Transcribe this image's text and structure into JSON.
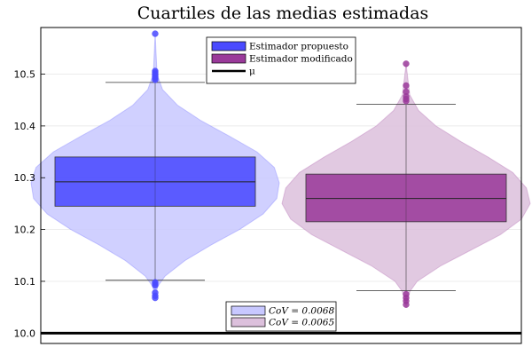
{
  "chart_data": {
    "type": "box",
    "title": "Cuartiles de las medias estimadas",
    "xlabel": "",
    "ylabel": "",
    "ylim": [
      9.98,
      10.59
    ],
    "yticks": [
      10.0,
      10.1,
      10.2,
      10.3,
      10.4,
      10.5
    ],
    "ytick_labels": [
      "10.0",
      "10.1",
      "10.2",
      "10.3",
      "10.4",
      "10.5"
    ],
    "grid": true,
    "legend_position": "top-center",
    "series": [
      {
        "name": "Estimador propuesto",
        "color": "#4a4aff",
        "violin_color": "#c8c8ff",
        "q1": 10.245,
        "median": 10.292,
        "q3": 10.34,
        "whisker_low": 10.102,
        "whisker_high": 10.484,
        "outliers": [
          10.578,
          10.506,
          10.503,
          10.5,
          10.498,
          10.495,
          10.492,
          10.489,
          10.098,
          10.095,
          10.092,
          10.078,
          10.072,
          10.068
        ],
        "violin": [
          [
            10.065,
            0.0
          ],
          [
            10.09,
            0.02
          ],
          [
            10.11,
            0.08
          ],
          [
            10.14,
            0.24
          ],
          [
            10.17,
            0.45
          ],
          [
            10.2,
            0.68
          ],
          [
            10.23,
            0.87
          ],
          [
            10.26,
            0.98
          ],
          [
            10.29,
            1.0
          ],
          [
            10.32,
            0.96
          ],
          [
            10.35,
            0.82
          ],
          [
            10.38,
            0.6
          ],
          [
            10.41,
            0.37
          ],
          [
            10.44,
            0.18
          ],
          [
            10.47,
            0.06
          ],
          [
            10.5,
            0.015
          ],
          [
            10.58,
            0.0
          ]
        ]
      },
      {
        "name": "Estimador modificado",
        "color": "#9a3a9a",
        "violin_color": "#dcc0dc",
        "q1": 10.215,
        "median": 10.26,
        "q3": 10.307,
        "whisker_low": 10.082,
        "whisker_high": 10.442,
        "outliers": [
          10.52,
          10.478,
          10.466,
          10.457,
          10.452,
          10.448,
          10.075,
          10.068,
          10.062,
          10.055
        ],
        "violin": [
          [
            10.05,
            0.0
          ],
          [
            10.08,
            0.03
          ],
          [
            10.1,
            0.09
          ],
          [
            10.13,
            0.28
          ],
          [
            10.16,
            0.52
          ],
          [
            10.19,
            0.76
          ],
          [
            10.22,
            0.93
          ],
          [
            10.25,
            1.0
          ],
          [
            10.28,
            0.97
          ],
          [
            10.31,
            0.86
          ],
          [
            10.34,
            0.66
          ],
          [
            10.37,
            0.44
          ],
          [
            10.4,
            0.24
          ],
          [
            10.43,
            0.1
          ],
          [
            10.46,
            0.03
          ],
          [
            10.52,
            0.0
          ]
        ]
      }
    ],
    "reference_line": {
      "name": "μ",
      "value": 10.0,
      "color": "#000000"
    },
    "legend_items": [
      {
        "label": "Estimador propuesto",
        "color": "#4a4aff",
        "kind": "box"
      },
      {
        "label": "Estimador modificado",
        "color": "#9a3a9a",
        "kind": "box"
      },
      {
        "label": "μ",
        "color": "#000000",
        "kind": "line"
      }
    ],
    "annotation_legend": [
      {
        "label": "CoV = 0.0068",
        "color": "#c8c8ff"
      },
      {
        "label": "CoV = 0.0065",
        "color": "#dcc0dc"
      }
    ]
  }
}
